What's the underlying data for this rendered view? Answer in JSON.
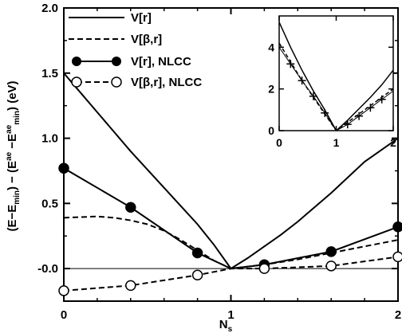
{
  "chart_data": {
    "type": "line",
    "xlabel": "N",
    "xlabel_sub": "s",
    "ylabel_parts": [
      {
        "t": "(E"
      },
      {
        "t": "−E",
        "sub": "min"
      },
      {
        "t": ") − (E"
      },
      {
        "t": "",
        "sup": "ae"
      },
      {
        "t": " −E",
        "sup": "ae",
        "sub": "min"
      },
      {
        "t": ") (eV)"
      }
    ],
    "xlim": [
      0,
      2
    ],
    "ylim": [
      -0.25,
      2.0
    ],
    "xticks": [
      "0",
      "1",
      "2"
    ],
    "yticks": [
      "-0.0",
      "0.5",
      "1.0",
      "1.5",
      "2.0"
    ],
    "ytick_values": [
      0.0,
      0.5,
      1.0,
      1.5,
      2.0
    ],
    "zero_line": true,
    "legend": {
      "position": "top-left",
      "entries": [
        "V[r]",
        "V[β,r]",
        "V[r], NLCC",
        "V[β,r], NLCC"
      ]
    },
    "series": [
      {
        "name": "V[r]",
        "style": "solid",
        "marker": "none",
        "x": [
          0,
          0.1,
          0.2,
          0.3,
          0.4,
          0.5,
          0.6,
          0.7,
          0.8,
          0.9,
          1.0,
          1.1,
          1.2,
          1.3,
          1.4,
          1.5,
          1.6,
          1.7,
          1.8,
          1.9,
          2.0
        ],
        "y": [
          1.5,
          1.35,
          1.2,
          1.05,
          0.9,
          0.76,
          0.62,
          0.48,
          0.34,
          0.18,
          0.0,
          0.08,
          0.17,
          0.26,
          0.36,
          0.47,
          0.58,
          0.7,
          0.82,
          0.91,
          1.0
        ]
      },
      {
        "name": "V[β,r]",
        "style": "dashed",
        "marker": "none",
        "x": [
          0,
          0.1,
          0.2,
          0.3,
          0.4,
          0.5,
          0.6,
          0.7,
          0.8,
          0.9,
          1.0,
          1.2,
          1.4,
          1.6,
          1.8,
          2.0
        ],
        "y": [
          0.39,
          0.395,
          0.4,
          0.39,
          0.37,
          0.34,
          0.29,
          0.22,
          0.14,
          0.06,
          0.0,
          0.03,
          0.07,
          0.12,
          0.17,
          0.22
        ]
      },
      {
        "name": "V[r], NLCC",
        "style": "solid",
        "marker": "filled-circle",
        "x": [
          0,
          0.4,
          0.8,
          1.0,
          1.2,
          1.6,
          2.0
        ],
        "y": [
          0.77,
          0.47,
          0.12,
          0.0,
          0.03,
          0.13,
          0.32
        ]
      },
      {
        "name": "V[β,r], NLCC",
        "style": "dashed",
        "marker": "open-circle",
        "x": [
          0,
          0.4,
          0.8,
          1.0,
          1.2,
          1.6,
          2.0
        ],
        "y": [
          -0.17,
          -0.13,
          -0.05,
          0.0,
          0.0,
          0.02,
          0.09
        ]
      }
    ],
    "inset": {
      "xlim": [
        0,
        2
      ],
      "ylim": [
        0,
        5.5
      ],
      "xticks": [
        "0",
        "1",
        "2"
      ],
      "yticks": [
        "0",
        "2",
        "4"
      ],
      "ytick_values": [
        0,
        2,
        4
      ],
      "series": [
        {
          "style": "solid",
          "marker": "none",
          "x": [
            0,
            0.2,
            0.4,
            0.6,
            0.8,
            1.0,
            1.2,
            1.4,
            1.6,
            1.8,
            2.0
          ],
          "y": [
            5.2,
            4.0,
            2.9,
            1.9,
            1.0,
            0.0,
            0.5,
            1.05,
            1.6,
            2.2,
            2.9
          ]
        },
        {
          "style": "dashed",
          "marker": "none",
          "x": [
            0,
            0.2,
            0.4,
            0.6,
            0.8,
            1.0,
            1.2,
            1.4,
            1.6,
            1.8,
            2.0
          ],
          "y": [
            4.2,
            3.3,
            2.4,
            1.6,
            0.8,
            0.0,
            0.4,
            0.8,
            1.2,
            1.6,
            2.0
          ]
        },
        {
          "style": "solid-thin",
          "marker": "plus",
          "x": [
            0,
            0.2,
            0.4,
            0.6,
            0.8,
            1.0,
            1.2,
            1.4,
            1.6,
            1.8,
            2.0
          ],
          "y": [
            4.0,
            3.2,
            2.4,
            1.65,
            0.85,
            0.0,
            0.3,
            0.7,
            1.1,
            1.5,
            1.9
          ]
        }
      ]
    }
  }
}
